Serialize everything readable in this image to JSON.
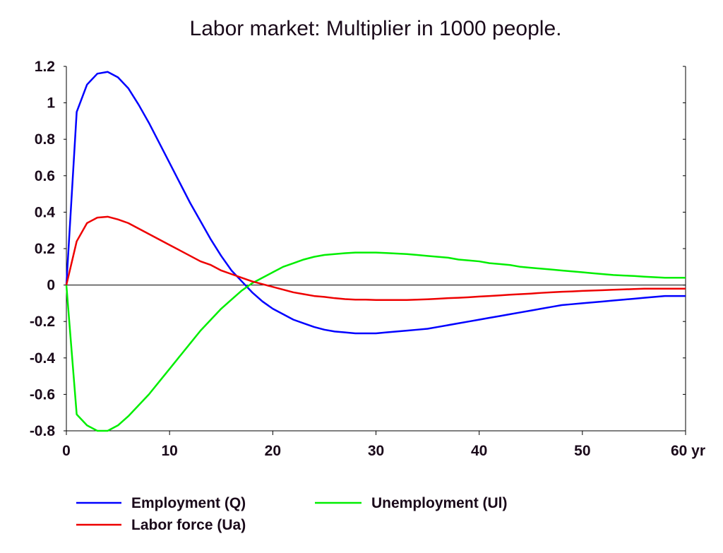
{
  "chart_data": {
    "type": "line",
    "title": "Labor market: Multiplier in 1000 people.",
    "xlabel": "",
    "ylabel": "",
    "xlim": [
      0,
      60
    ],
    "ylim": [
      -0.8,
      1.2
    ],
    "x_ticks": [
      {
        "value": 0,
        "label": "0"
      },
      {
        "value": 10,
        "label": "10"
      },
      {
        "value": 20,
        "label": "20"
      },
      {
        "value": 30,
        "label": "30"
      },
      {
        "value": 40,
        "label": "40"
      },
      {
        "value": 50,
        "label": "50"
      },
      {
        "value": 60,
        "label": "60 yr"
      }
    ],
    "y_ticks": [
      {
        "value": 1.2,
        "label": "1.2"
      },
      {
        "value": 1.0,
        "label": "1"
      },
      {
        "value": 0.8,
        "label": "0.8"
      },
      {
        "value": 0.6,
        "label": "0.6"
      },
      {
        "value": 0.4,
        "label": "0.4"
      },
      {
        "value": 0.2,
        "label": "0.2"
      },
      {
        "value": 0.0,
        "label": "0"
      },
      {
        "value": -0.2,
        "label": "-0.2"
      },
      {
        "value": -0.4,
        "label": "-0.4"
      },
      {
        "value": -0.6,
        "label": "-0.6"
      },
      {
        "value": -0.8,
        "label": "-0.8"
      }
    ],
    "grid": false,
    "zero_line": true,
    "legend_position": "bottom",
    "x": [
      0,
      1,
      2,
      3,
      4,
      5,
      6,
      7,
      8,
      9,
      10,
      11,
      12,
      13,
      14,
      15,
      16,
      17,
      18,
      19,
      20,
      21,
      22,
      23,
      24,
      25,
      26,
      27,
      28,
      29,
      30,
      31,
      32,
      33,
      34,
      35,
      36,
      37,
      38,
      39,
      40,
      41,
      42,
      43,
      44,
      45,
      46,
      47,
      48,
      49,
      50,
      51,
      52,
      53,
      54,
      55,
      56,
      57,
      58,
      59,
      60
    ],
    "series": [
      {
        "name": "Employment (Q)",
        "color": "#0000ff",
        "values": [
          0,
          0.95,
          1.1,
          1.16,
          1.17,
          1.14,
          1.08,
          0.99,
          0.89,
          0.78,
          0.67,
          0.56,
          0.45,
          0.35,
          0.25,
          0.16,
          0.08,
          0.02,
          -0.04,
          -0.09,
          -0.13,
          -0.16,
          -0.19,
          -0.21,
          -0.23,
          -0.245,
          -0.255,
          -0.26,
          -0.265,
          -0.265,
          -0.265,
          -0.26,
          -0.255,
          -0.25,
          -0.245,
          -0.24,
          -0.23,
          -0.22,
          -0.21,
          -0.2,
          -0.19,
          -0.18,
          -0.17,
          -0.16,
          -0.15,
          -0.14,
          -0.13,
          -0.12,
          -0.11,
          -0.105,
          -0.1,
          -0.095,
          -0.09,
          -0.085,
          -0.08,
          -0.075,
          -0.07,
          -0.065,
          -0.06,
          -0.06,
          -0.06
        ]
      },
      {
        "name": "Unemployment (Ul)",
        "color": "#00ee00",
        "values": [
          0,
          -0.71,
          -0.77,
          -0.8,
          -0.8,
          -0.77,
          -0.72,
          -0.66,
          -0.6,
          -0.53,
          -0.46,
          -0.39,
          -0.32,
          -0.25,
          -0.19,
          -0.13,
          -0.08,
          -0.03,
          0.01,
          0.04,
          0.07,
          0.1,
          0.12,
          0.14,
          0.155,
          0.165,
          0.17,
          0.175,
          0.178,
          0.178,
          0.178,
          0.176,
          0.173,
          0.17,
          0.165,
          0.16,
          0.155,
          0.15,
          0.14,
          0.135,
          0.13,
          0.12,
          0.115,
          0.11,
          0.1,
          0.095,
          0.09,
          0.085,
          0.08,
          0.075,
          0.07,
          0.065,
          0.06,
          0.055,
          0.052,
          0.05,
          0.046,
          0.043,
          0.04,
          0.04,
          0.04
        ]
      },
      {
        "name": "Labor force (Ua)",
        "color": "#ee0000",
        "values": [
          0,
          0.24,
          0.34,
          0.37,
          0.375,
          0.36,
          0.34,
          0.31,
          0.28,
          0.25,
          0.22,
          0.19,
          0.16,
          0.13,
          0.11,
          0.08,
          0.06,
          0.04,
          0.02,
          0.005,
          -0.01,
          -0.025,
          -0.04,
          -0.05,
          -0.06,
          -0.065,
          -0.072,
          -0.077,
          -0.08,
          -0.08,
          -0.082,
          -0.082,
          -0.082,
          -0.082,
          -0.08,
          -0.078,
          -0.075,
          -0.072,
          -0.07,
          -0.067,
          -0.063,
          -0.06,
          -0.057,
          -0.053,
          -0.05,
          -0.047,
          -0.043,
          -0.04,
          -0.037,
          -0.035,
          -0.032,
          -0.03,
          -0.028,
          -0.026,
          -0.024,
          -0.022,
          -0.02,
          -0.02,
          -0.02,
          -0.02,
          -0.02
        ]
      }
    ]
  }
}
